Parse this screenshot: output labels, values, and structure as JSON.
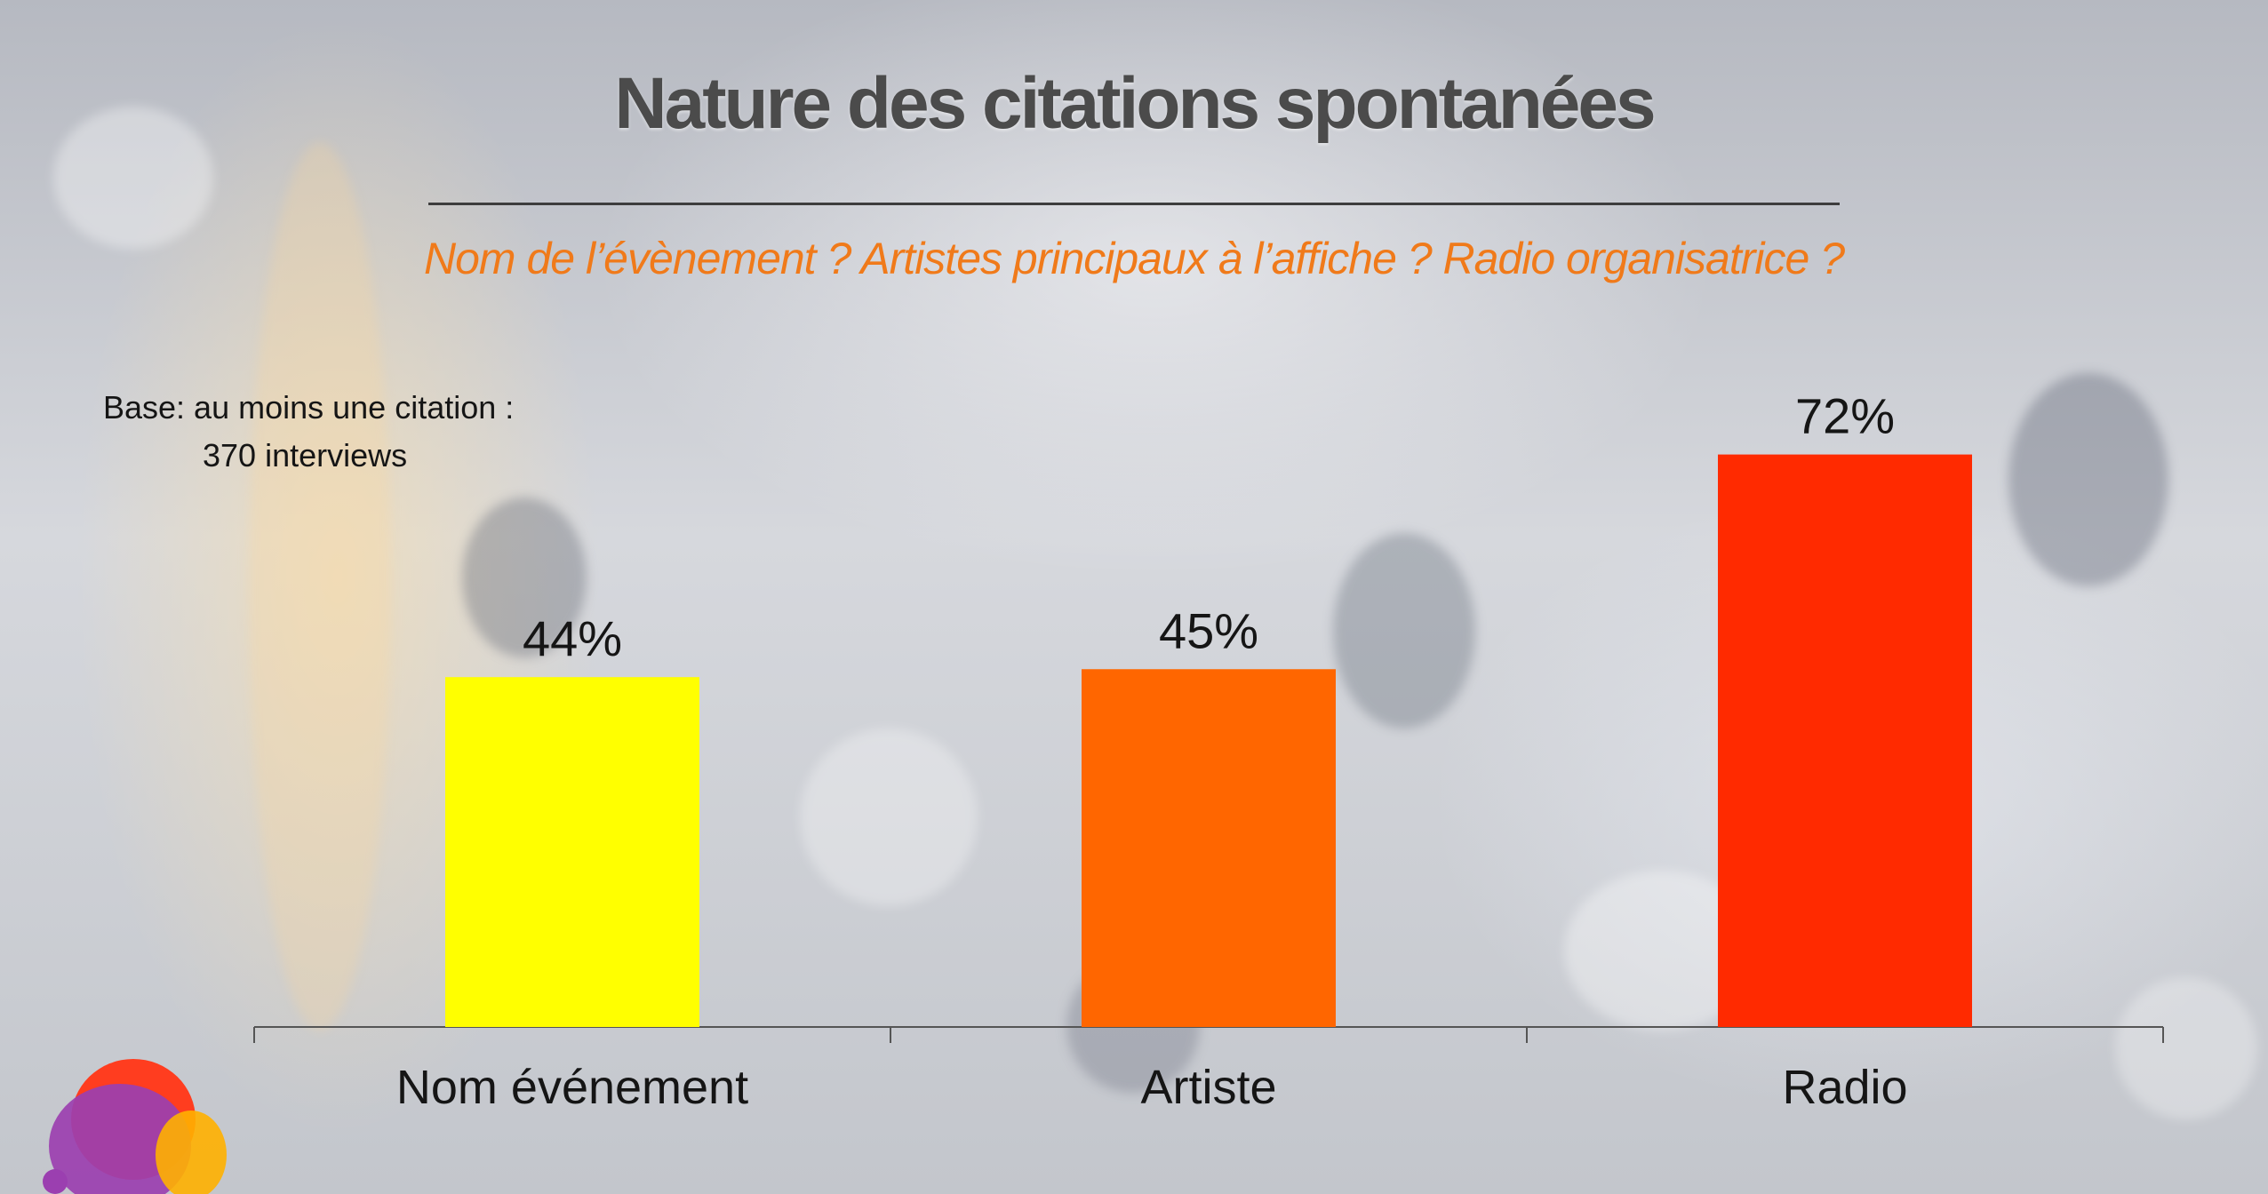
{
  "slide": {
    "title": "Nature des citations spontanées",
    "subtitle": "Nom de l’évènement ? Artistes principaux à l’affiche ? Radio organisatrice ?",
    "base_line1": "Base: au moins une citation  :",
    "base_line2": "370 interviews"
  },
  "chart_data": {
    "type": "bar",
    "categories": [
      "Nom événement",
      "Artiste",
      "Radio"
    ],
    "values": [
      44,
      45,
      72
    ],
    "value_labels": [
      "44%",
      "45%",
      "72%"
    ],
    "colors": [
      "#ffff00",
      "#ff6600",
      "#ff2a00"
    ],
    "ylim": [
      0,
      100
    ],
    "grid": false,
    "xlabel": "",
    "ylabel": ""
  },
  "logo": {
    "icon": "brand-logo-icon",
    "colors": [
      "#ff3d1f",
      "#9b3fb0",
      "#ffb000"
    ]
  }
}
